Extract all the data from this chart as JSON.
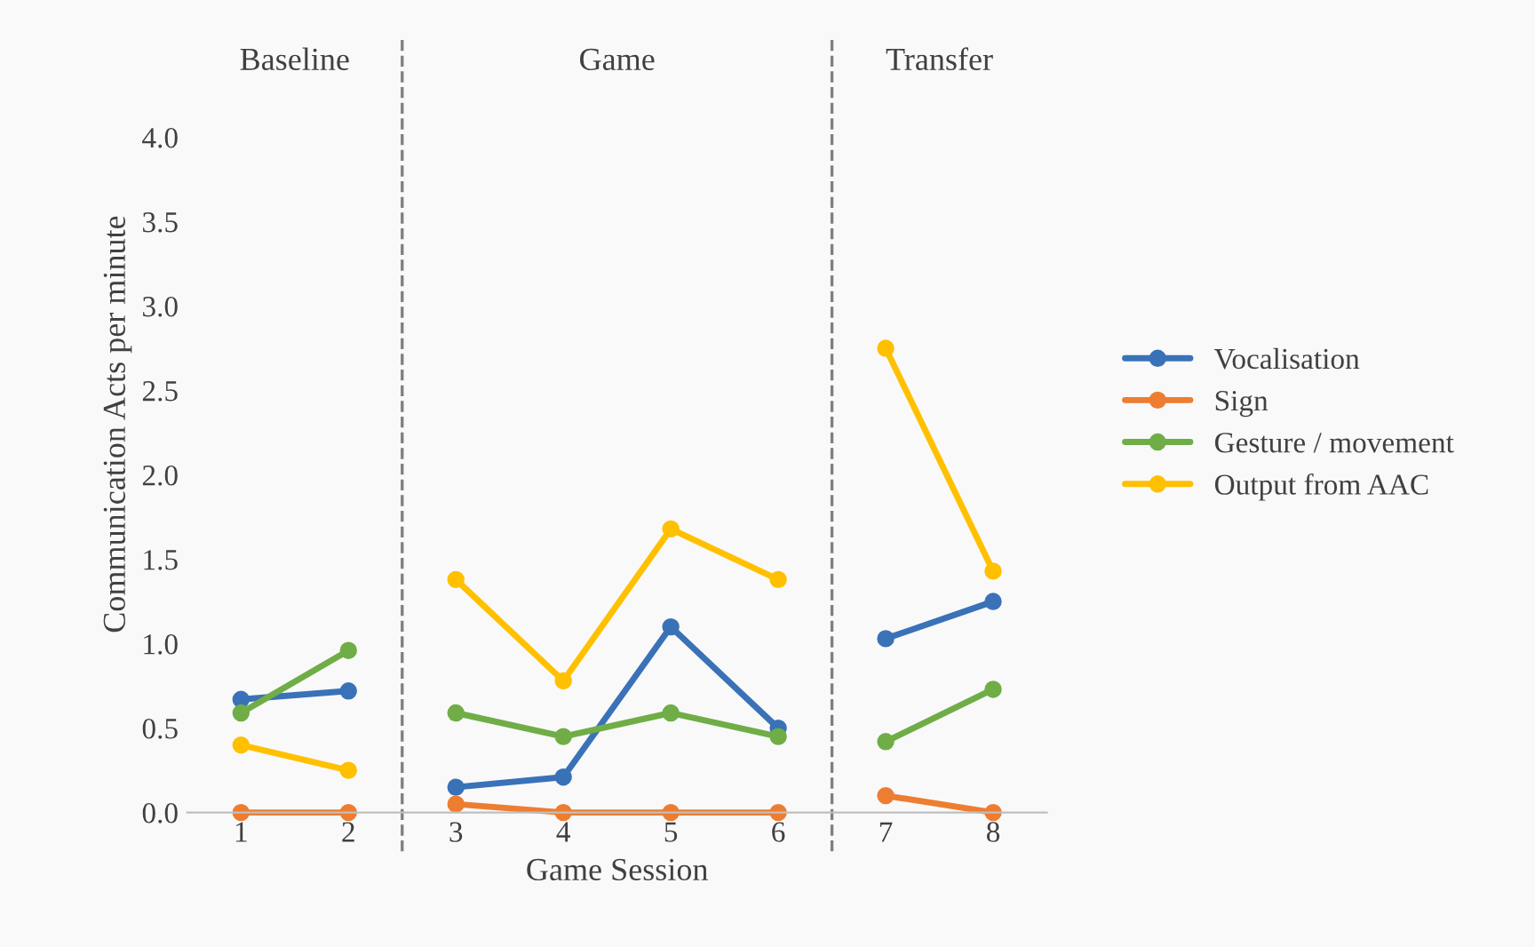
{
  "chart_data": {
    "type": "line",
    "xlabel": "Game Session",
    "ylabel": "Communication Acts per minute",
    "x": [
      1,
      2,
      3,
      4,
      5,
      6,
      7,
      8
    ],
    "series": [
      {
        "name": "Vocalisation",
        "color": "#3a72b8",
        "values": [
          0.67,
          0.72,
          0.15,
          0.21,
          1.1,
          0.5,
          1.03,
          1.25
        ]
      },
      {
        "name": "Sign",
        "color": "#ed7d31",
        "values": [
          0.0,
          0.0,
          0.05,
          0.0,
          0.0,
          0.0,
          0.1,
          0.0
        ]
      },
      {
        "name": "Gesture / movement",
        "color": "#70ad47",
        "values": [
          0.59,
          0.96,
          0.59,
          0.45,
          0.59,
          0.45,
          0.42,
          0.73
        ]
      },
      {
        "name": "Output from AAC",
        "color": "#ffc000",
        "values": [
          0.4,
          0.25,
          1.38,
          0.78,
          1.68,
          1.38,
          2.75,
          1.43
        ]
      }
    ],
    "ref_lines": [
      {
        "axis": "x",
        "value": 2.5,
        "color": "#7f7f7f",
        "line_style": "dashed"
      },
      {
        "axis": "x",
        "value": 6.5,
        "color": "#7f7f7f",
        "line_style": "dashed"
      }
    ],
    "annotations": [
      "Baseline",
      "Game",
      "Transfer"
    ],
    "xlim": [
      0.5,
      8.5
    ],
    "xticks": [
      1,
      2,
      3,
      4,
      5,
      6,
      7,
      8
    ],
    "ylim": [
      0,
      4.6
    ],
    "yticks": [
      {
        "value": 0,
        "label": "0.0"
      },
      0.5,
      {
        "value": 1,
        "label": "1.0"
      },
      1.5,
      {
        "value": 2,
        "label": "2.0"
      },
      2.5,
      {
        "value": 3,
        "label": "3.0"
      },
      3.5,
      {
        "value": 4,
        "label": "4.0"
      }
    ],
    "grid": false,
    "legend": "right",
    "marker": "circle",
    "line_style": "solid"
  }
}
